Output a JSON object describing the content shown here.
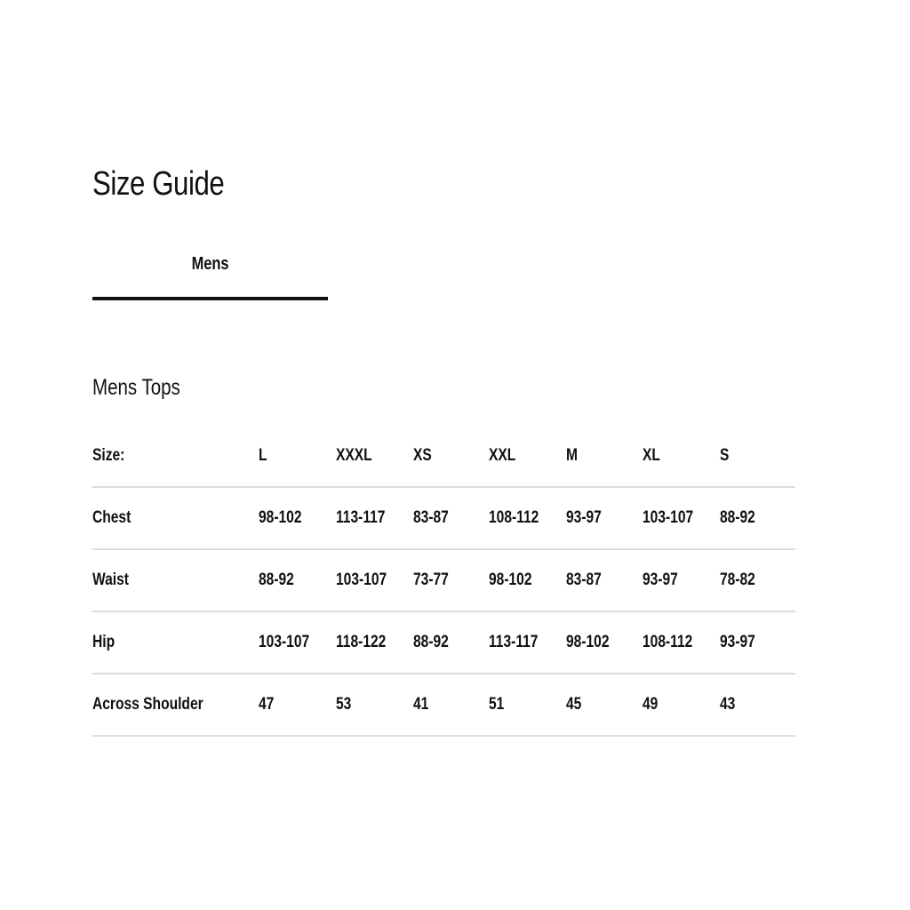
{
  "page": {
    "title": "Size Guide",
    "tabs": [
      {
        "label": "Mens",
        "active": true
      }
    ],
    "section_title": "Mens Tops"
  },
  "table": {
    "header": {
      "label": "Size:",
      "sizes": [
        "L",
        "XXXL",
        "XS",
        "XXL",
        "M",
        "XL",
        "S"
      ]
    },
    "rows": [
      {
        "label": "Chest",
        "values": [
          "98-102",
          "113-117",
          "83-87",
          "108-112",
          "93-97",
          "103-107",
          "88-92"
        ]
      },
      {
        "label": "Waist",
        "values": [
          "88-92",
          "103-107",
          "73-77",
          "98-102",
          "83-87",
          "93-97",
          "78-82"
        ]
      },
      {
        "label": "Hip",
        "values": [
          "103-107",
          "118-122",
          "88-92",
          "113-117",
          "98-102",
          "108-112",
          "93-97"
        ]
      },
      {
        "label": "Across Shoulder",
        "values": [
          "47",
          "53",
          "41",
          "51",
          "45",
          "49",
          "43"
        ]
      }
    ]
  }
}
